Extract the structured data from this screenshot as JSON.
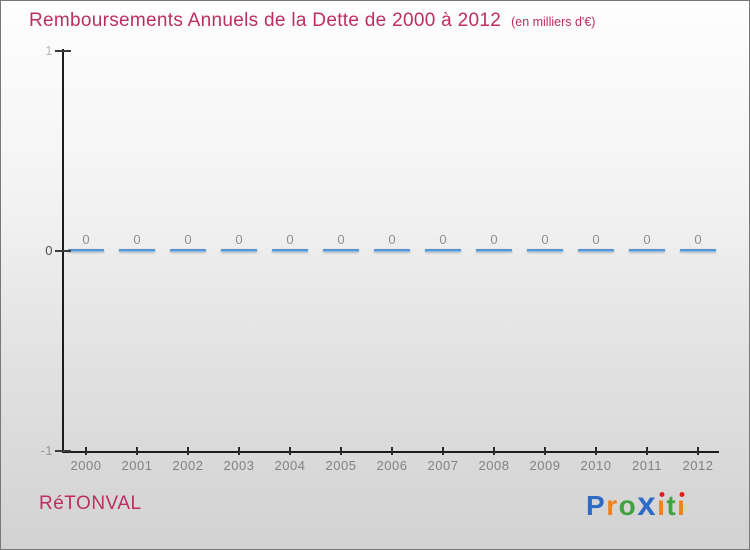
{
  "header": {
    "title": "Remboursements Annuels de la Dette de 2000 à 2012",
    "subtitle": "(en milliers d'€)",
    "title_color": "#be2d62"
  },
  "chart_data": {
    "type": "bar",
    "title": "Remboursements Annuels de la Dette de 2000 à 2012",
    "subtitle": "(en milliers d'€)",
    "categories": [
      "2000",
      "2001",
      "2002",
      "2003",
      "2004",
      "2005",
      "2006",
      "2007",
      "2008",
      "2009",
      "2010",
      "2011",
      "2012"
    ],
    "values": [
      0,
      0,
      0,
      0,
      0,
      0,
      0,
      0,
      0,
      0,
      0,
      0,
      0
    ],
    "xlabel": "",
    "ylabel": "",
    "ylim": [
      -1,
      1
    ],
    "yticks": [
      {
        "value": 1,
        "label": "1",
        "color": "#b8b8b8"
      },
      {
        "value": 0,
        "label": "0",
        "color": "#4d4d4d"
      },
      {
        "value": -1,
        "label": "-1",
        "color": "#989898"
      }
    ],
    "grid": false,
    "legend": false,
    "data_labels_shown": true,
    "bar_color": "#5a9ada",
    "bar_color_light": "#aacdf0"
  },
  "footer": {
    "brand": "RéTONVAL",
    "brand_color": "#be2d62",
    "logo": {
      "name": "Proxiti",
      "letters": [
        {
          "ch": "P",
          "color": "#2f6bc4"
        },
        {
          "ch": "r",
          "color": "#f0821e"
        },
        {
          "ch": "o",
          "color": "#3fa43f"
        },
        {
          "ch": "x",
          "color": "#2f6bc4",
          "bold": true
        },
        {
          "ch": "i",
          "color": "#f0821e",
          "dot": "#e02020"
        },
        {
          "ch": "t",
          "color": "#3fa43f"
        },
        {
          "ch": "i",
          "color": "#f0821e",
          "dot": "#e02020"
        }
      ]
    }
  }
}
